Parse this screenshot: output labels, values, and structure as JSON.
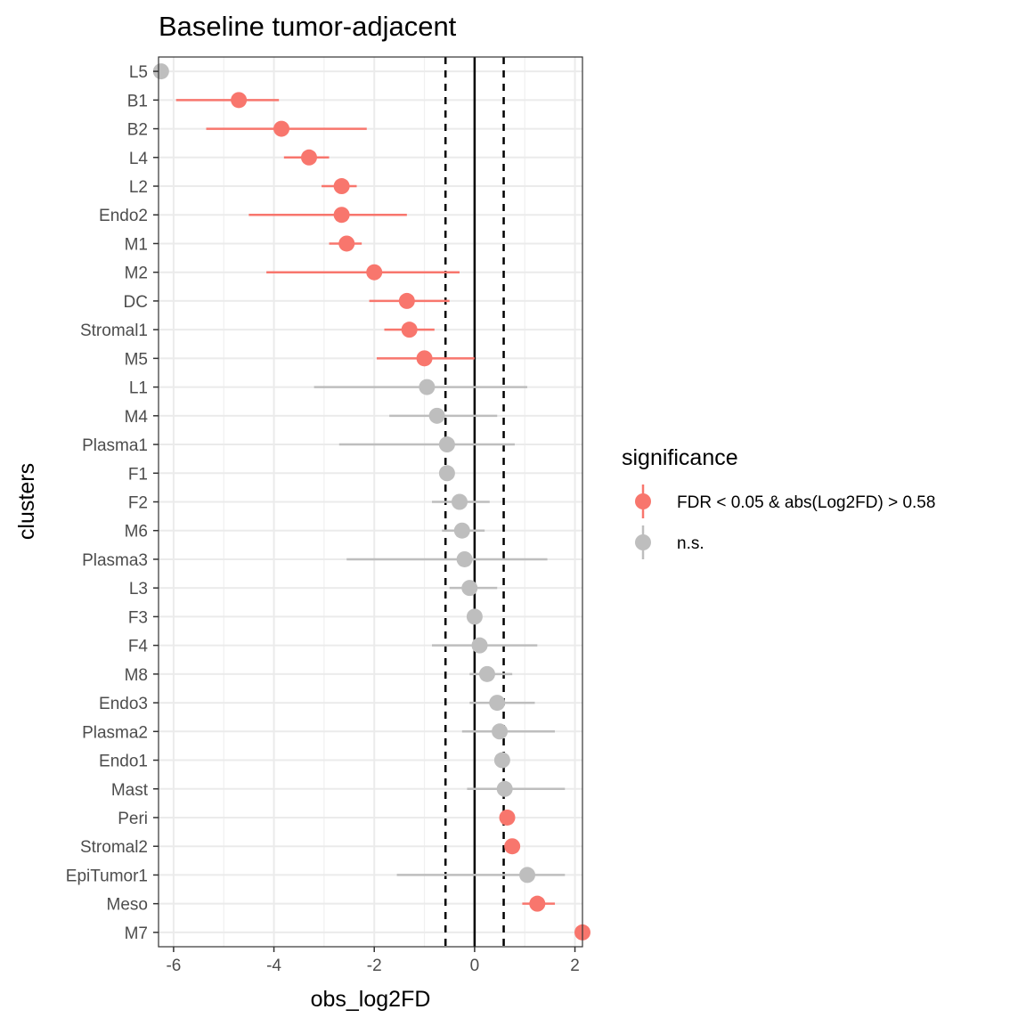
{
  "chart_data": {
    "type": "scatter",
    "title": "Baseline tumor-adjacent",
    "xlabel": "obs_log2FD",
    "ylabel": "clusters",
    "xlim": [
      -6.3,
      2.15
    ],
    "x_ticks": [
      -6,
      -4,
      -2,
      0,
      2
    ],
    "x_tick_labels": [
      "-6",
      "-4",
      "-2",
      "0",
      "2"
    ],
    "grid": true,
    "reference_lines": [
      {
        "x": -0.58,
        "style": "dashed"
      },
      {
        "x": 0,
        "style": "solid"
      },
      {
        "x": 0.58,
        "style": "dashed"
      }
    ],
    "legend": {
      "title": "significance",
      "placement": "right",
      "entries": [
        {
          "label": "FDR < 0.05 & abs(Log2FD) > 0.58",
          "color": "#f8766d"
        },
        {
          "label": "n.s.",
          "color": "#bebebe"
        }
      ]
    },
    "points": [
      {
        "cluster": "L5",
        "x": -6.25,
        "low": -6.25,
        "high": -6.25,
        "sig": false
      },
      {
        "cluster": "B1",
        "x": -4.7,
        "low": -5.95,
        "high": -3.9,
        "sig": true
      },
      {
        "cluster": "B2",
        "x": -3.85,
        "low": -5.35,
        "high": -2.15,
        "sig": true
      },
      {
        "cluster": "L4",
        "x": -3.3,
        "low": -3.8,
        "high": -2.9,
        "sig": true
      },
      {
        "cluster": "L2",
        "x": -2.65,
        "low": -3.05,
        "high": -2.35,
        "sig": true
      },
      {
        "cluster": "Endo2",
        "x": -2.65,
        "low": -4.5,
        "high": -1.35,
        "sig": true
      },
      {
        "cluster": "M1",
        "x": -2.55,
        "low": -2.9,
        "high": -2.25,
        "sig": true
      },
      {
        "cluster": "M2",
        "x": -2.0,
        "low": -4.15,
        "high": -0.3,
        "sig": true
      },
      {
        "cluster": "DC",
        "x": -1.35,
        "low": -2.1,
        "high": -0.5,
        "sig": true
      },
      {
        "cluster": "Stromal1",
        "x": -1.3,
        "low": -1.8,
        "high": -0.8,
        "sig": true
      },
      {
        "cluster": "M5",
        "x": -1.0,
        "low": -1.95,
        "high": 0.0,
        "sig": true
      },
      {
        "cluster": "L1",
        "x": -0.95,
        "low": -3.2,
        "high": 1.05,
        "sig": false
      },
      {
        "cluster": "M4",
        "x": -0.75,
        "low": -1.7,
        "high": 0.45,
        "sig": false
      },
      {
        "cluster": "Plasma1",
        "x": -0.55,
        "low": -2.7,
        "high": 0.8,
        "sig": false
      },
      {
        "cluster": "F1",
        "x": -0.55,
        "low": -0.55,
        "high": -0.55,
        "sig": false
      },
      {
        "cluster": "F2",
        "x": -0.3,
        "low": -0.85,
        "high": 0.3,
        "sig": false
      },
      {
        "cluster": "M6",
        "x": -0.25,
        "low": -0.65,
        "high": 0.2,
        "sig": false
      },
      {
        "cluster": "Plasma3",
        "x": -0.2,
        "low": -2.55,
        "high": 1.45,
        "sig": false
      },
      {
        "cluster": "L3",
        "x": -0.1,
        "low": -0.5,
        "high": 0.45,
        "sig": false
      },
      {
        "cluster": "F3",
        "x": 0.0,
        "low": 0.0,
        "high": 0.0,
        "sig": false
      },
      {
        "cluster": "F4",
        "x": 0.1,
        "low": -0.85,
        "high": 1.25,
        "sig": false
      },
      {
        "cluster": "M8",
        "x": 0.25,
        "low": -0.1,
        "high": 0.75,
        "sig": false
      },
      {
        "cluster": "Endo3",
        "x": 0.45,
        "low": -0.1,
        "high": 1.2,
        "sig": false
      },
      {
        "cluster": "Plasma2",
        "x": 0.5,
        "low": -0.25,
        "high": 1.6,
        "sig": false
      },
      {
        "cluster": "Endo1",
        "x": 0.55,
        "low": 0.55,
        "high": 0.55,
        "sig": false
      },
      {
        "cluster": "Mast",
        "x": 0.6,
        "low": -0.15,
        "high": 1.8,
        "sig": false
      },
      {
        "cluster": "Peri",
        "x": 0.65,
        "low": 0.65,
        "high": 0.65,
        "sig": true
      },
      {
        "cluster": "Stromal2",
        "x": 0.75,
        "low": 0.75,
        "high": 0.75,
        "sig": true
      },
      {
        "cluster": "EpiTumor1",
        "x": 1.05,
        "low": -1.55,
        "high": 1.8,
        "sig": false
      },
      {
        "cluster": "Meso",
        "x": 1.25,
        "low": 0.95,
        "high": 1.6,
        "sig": true
      },
      {
        "cluster": "M7",
        "x": 2.15,
        "low": 2.15,
        "high": 2.15,
        "sig": true
      }
    ]
  }
}
